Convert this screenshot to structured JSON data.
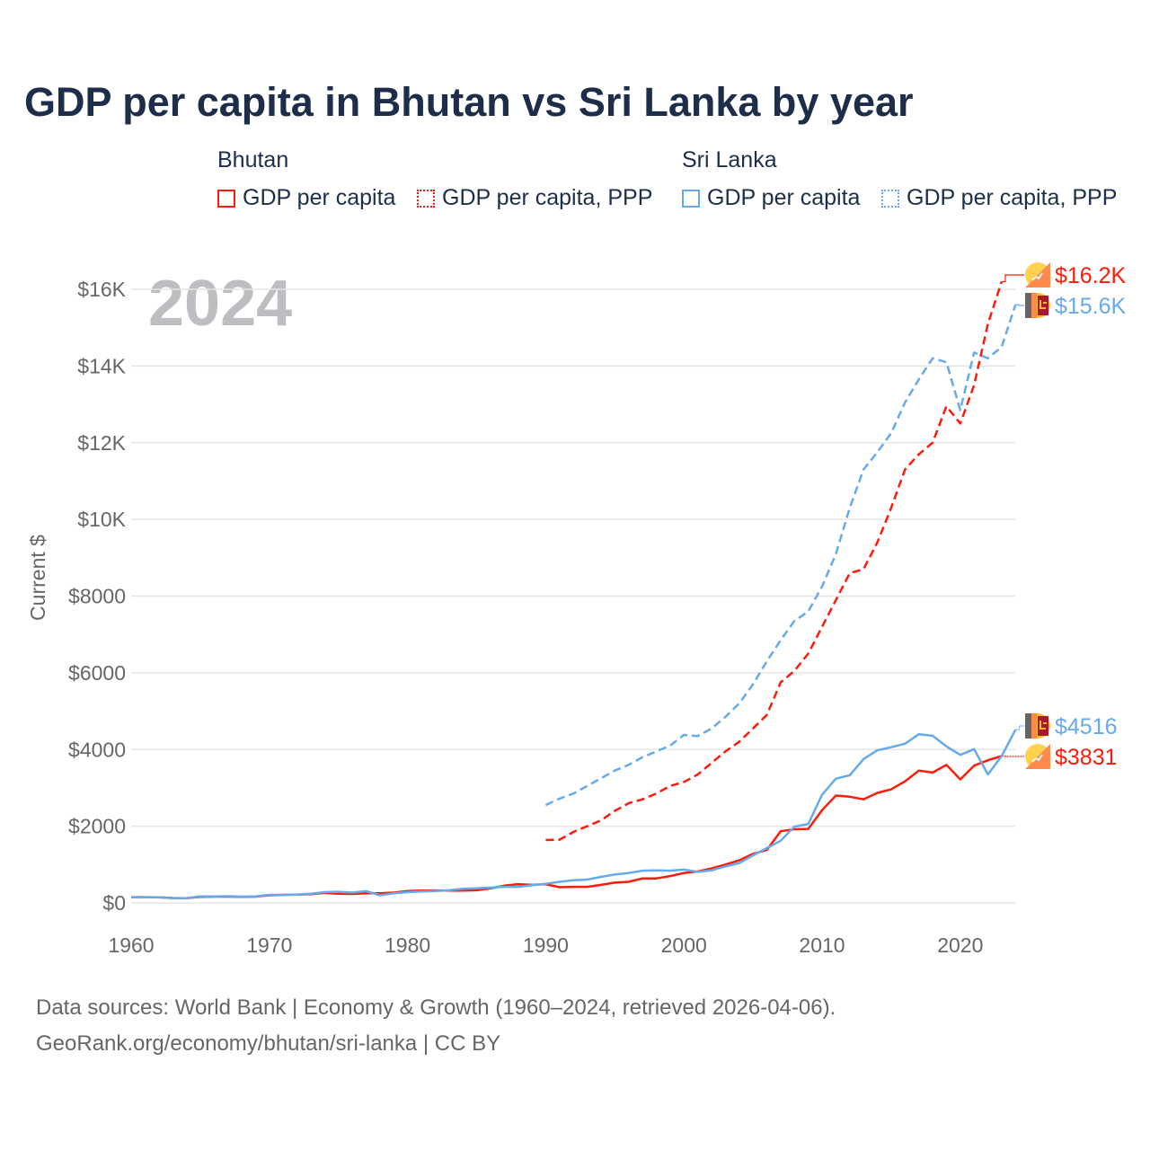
{
  "title": "GDP per capita in Bhutan vs Sri Lanka by year",
  "legend": {
    "groups": [
      {
        "name": "Bhutan",
        "items": [
          "GDP per capita",
          "GDP per capita, PPP"
        ]
      },
      {
        "name": "Sri Lanka",
        "items": [
          "GDP per capita",
          "GDP per capita, PPP"
        ]
      }
    ]
  },
  "colors": {
    "bhutan": "#ff1a0a",
    "sri_lanka": "#66aaee"
  },
  "footer": {
    "line1": "Data sources: World Bank | Economy & Growth (1960–2024, retrieved 2026-04-06).",
    "line2": "GeoRank.org/economy/bhutan/sri-lanka | CC BY"
  },
  "chart_data": {
    "type": "line",
    "title": "GDP per capita in Bhutan vs Sri Lanka by year",
    "year_label": "2024",
    "xlabel": "",
    "ylabel": "Current $",
    "xlim": [
      1960,
      2024
    ],
    "ylim": [
      0,
      16500
    ],
    "x_ticks": [
      1960,
      1970,
      1980,
      1990,
      2000,
      2010,
      2020
    ],
    "y_ticks": [
      {
        "v": 0,
        "l": "$0"
      },
      {
        "v": 2000,
        "l": "$2000"
      },
      {
        "v": 4000,
        "l": "$4000"
      },
      {
        "v": 6000,
        "l": "$6000"
      },
      {
        "v": 8000,
        "l": "$8000"
      },
      {
        "v": 10000,
        "l": "$10K"
      },
      {
        "v": 12000,
        "l": "$12K"
      },
      {
        "v": 14000,
        "l": "$14K"
      },
      {
        "v": 16000,
        "l": "$16K"
      }
    ],
    "series": [
      {
        "name": "Bhutan GDP per capita",
        "country": "bhutan",
        "dash": false,
        "start": 1960,
        "values": [
          150,
          150,
          145,
          130,
          125,
          160,
          165,
          165,
          160,
          165,
          200,
          210,
          215,
          230,
          260,
          240,
          235,
          250,
          250,
          270,
          310,
          320,
          325,
          320,
          320,
          330,
          380,
          450,
          490,
          470,
          490,
          410,
          420,
          420,
          470,
          530,
          550,
          640,
          640,
          700,
          780,
          820,
          900,
          1000,
          1110,
          1280,
          1380,
          1870,
          1920,
          1930,
          2420,
          2800,
          2770,
          2700,
          2870,
          2960,
          3170,
          3450,
          3400,
          3600,
          3220,
          3580,
          3720,
          3831
        ],
        "end_label": "$3831"
      },
      {
        "name": "Bhutan GDP per capita, PPP",
        "country": "bhutan",
        "dash": true,
        "start": 1990,
        "values": [
          1640,
          1650,
          1850,
          2000,
          2150,
          2400,
          2600,
          2700,
          2850,
          3050,
          3150,
          3350,
          3650,
          3950,
          4200,
          4550,
          4900,
          5750,
          6050,
          6500,
          7200,
          7900,
          8600,
          8700,
          9400,
          10300,
          11300,
          11700,
          12000,
          12950,
          12500,
          13500,
          15100,
          16200
        ],
        "end_label": "$16.2K"
      },
      {
        "name": "Sri Lanka GDP per capita",
        "country": "sri_lanka",
        "dash": false,
        "start": 1960,
        "values": [
          150,
          150,
          145,
          125,
          125,
          170,
          170,
          175,
          165,
          170,
          210,
          210,
          215,
          240,
          280,
          290,
          270,
          310,
          200,
          250,
          280,
          300,
          310,
          330,
          370,
          380,
          400,
          420,
          420,
          460,
          500,
          550,
          590,
          610,
          680,
          740,
          780,
          840,
          850,
          840,
          870,
          810,
          850,
          950,
          1040,
          1240,
          1430,
          1620,
          1990,
          2060,
          2820,
          3240,
          3330,
          3750,
          3980,
          4060,
          4150,
          4400,
          4360,
          4080,
          3860,
          4010,
          3350,
          3830,
          4516
        ],
        "end_label": "$4516"
      },
      {
        "name": "Sri Lanka GDP per capita, PPP",
        "country": "sri_lanka",
        "dash": true,
        "start": 1990,
        "values": [
          2550,
          2720,
          2850,
          3050,
          3250,
          3450,
          3600,
          3800,
          3950,
          4100,
          4380,
          4350,
          4550,
          4850,
          5200,
          5700,
          6300,
          6850,
          7350,
          7600,
          8250,
          9100,
          10300,
          11300,
          11750,
          12250,
          13050,
          13650,
          14200,
          14100,
          12850,
          14350,
          14200,
          14500,
          15600
        ],
        "end_label": "$15.6K"
      }
    ]
  }
}
